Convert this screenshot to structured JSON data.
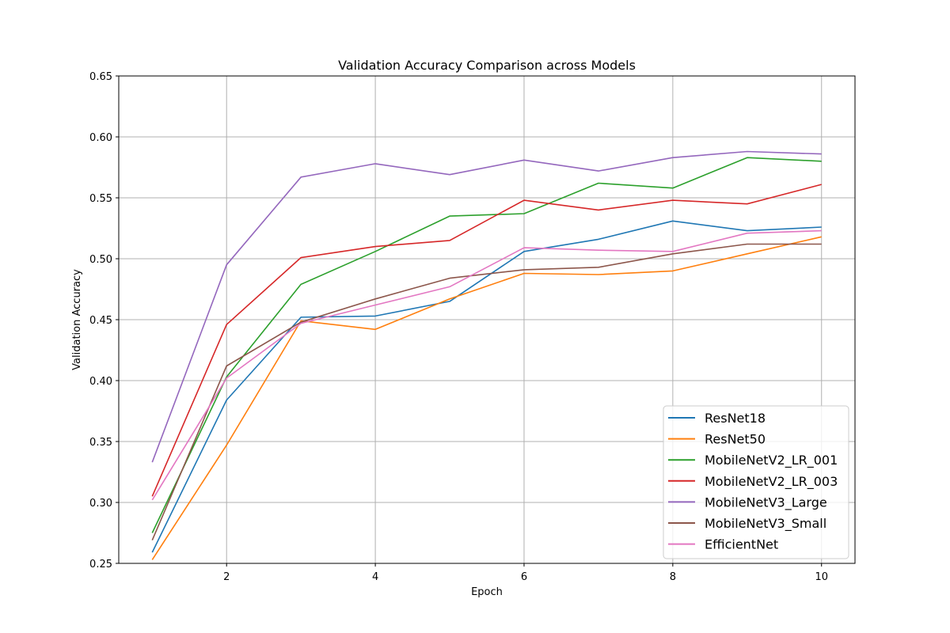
{
  "chart_data": {
    "type": "line",
    "title": "Validation Accuracy Comparison across Models",
    "xlabel": "Epoch",
    "ylabel": "Validation Accuracy",
    "xlim": [
      0.55,
      10.45
    ],
    "ylim": [
      0.25,
      0.65
    ],
    "xticks": [
      2,
      4,
      6,
      8,
      10
    ],
    "yticks": [
      0.25,
      0.3,
      0.35,
      0.4,
      0.45,
      0.5,
      0.55,
      0.6,
      0.65
    ],
    "grid": true,
    "legend_position": "lower-right",
    "x": [
      1,
      2,
      3,
      4,
      5,
      6,
      7,
      8,
      9,
      10
    ],
    "series": [
      {
        "name": "ResNet18",
        "color": "#1f77b4",
        "values": [
          0.259,
          0.384,
          0.452,
          0.453,
          0.465,
          0.506,
          0.516,
          0.531,
          0.523,
          0.526
        ]
      },
      {
        "name": "ResNet50",
        "color": "#ff7f0e",
        "values": [
          0.253,
          0.347,
          0.449,
          0.442,
          0.467,
          0.488,
          0.487,
          0.49,
          0.504,
          0.518
        ]
      },
      {
        "name": "MobileNetV2_LR_001",
        "color": "#2ca02c",
        "values": [
          0.275,
          0.403,
          0.479,
          0.506,
          0.535,
          0.537,
          0.562,
          0.558,
          0.583,
          0.58
        ]
      },
      {
        "name": "MobileNetV2_LR_003",
        "color": "#d62728",
        "values": [
          0.305,
          0.446,
          0.501,
          0.51,
          0.515,
          0.548,
          0.54,
          0.548,
          0.545,
          0.561
        ]
      },
      {
        "name": "MobileNetV3_Large",
        "color": "#9467bd",
        "values": [
          0.333,
          0.495,
          0.567,
          0.578,
          0.569,
          0.581,
          0.572,
          0.583,
          0.588,
          0.586
        ]
      },
      {
        "name": "MobileNetV3_Small",
        "color": "#8c564b",
        "values": [
          0.269,
          0.412,
          0.448,
          0.467,
          0.484,
          0.491,
          0.493,
          0.504,
          0.512,
          0.512
        ]
      },
      {
        "name": "EfficientNet",
        "color": "#e377c2",
        "values": [
          0.302,
          0.402,
          0.447,
          0.462,
          0.477,
          0.509,
          0.507,
          0.506,
          0.521,
          0.523
        ]
      }
    ]
  }
}
